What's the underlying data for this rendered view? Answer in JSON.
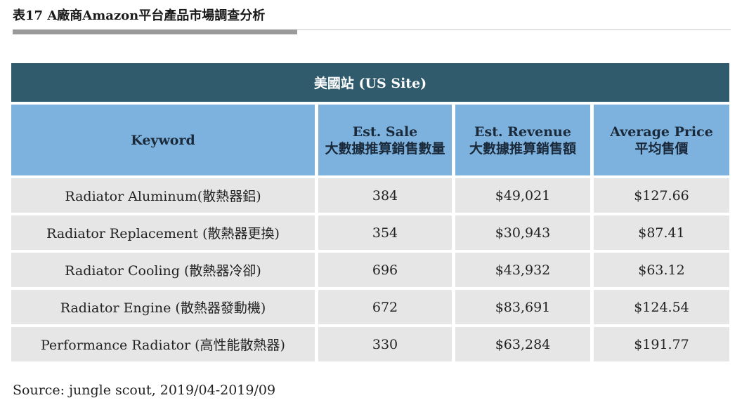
{
  "title": "表17 A廠商Amazon平台產品市場調查分析",
  "table": {
    "site_header": "美國站 (US Site)",
    "columns": [
      {
        "line1": "Keyword",
        "line2": ""
      },
      {
        "line1": "Est. Sale",
        "line2": "大數據推算銷售數量"
      },
      {
        "line1": "Est. Revenue",
        "line2": "大數據推算銷售額"
      },
      {
        "line1": "Average Price",
        "line2": "平均售價"
      }
    ],
    "rows": [
      {
        "keyword": "Radiator Aluminum(散熱器鋁)",
        "sale": "384",
        "revenue": "$49,021",
        "price": "$127.66"
      },
      {
        "keyword": "Radiator Replacement (散熱器更換)",
        "sale": "354",
        "revenue": "$30,943",
        "price": "$87.41"
      },
      {
        "keyword": "Radiator Cooling (散熱器冷卻)",
        "sale": "696",
        "revenue": "$43,932",
        "price": "$63.12"
      },
      {
        "keyword": "Radiator Engine (散熱器發動機)",
        "sale": "672",
        "revenue": "$83,691",
        "price": "$124.54"
      },
      {
        "keyword": "Performance Radiator (高性能散熱器)",
        "sale": "330",
        "revenue": "$63,284",
        "price": "$191.77"
      }
    ]
  },
  "source": "Source: jungle scout, 2019/04-2019/09",
  "colors": {
    "header_dark": "#2f5b6c",
    "header_light": "#7eb2de",
    "row_bg": "#e6e6e6"
  }
}
